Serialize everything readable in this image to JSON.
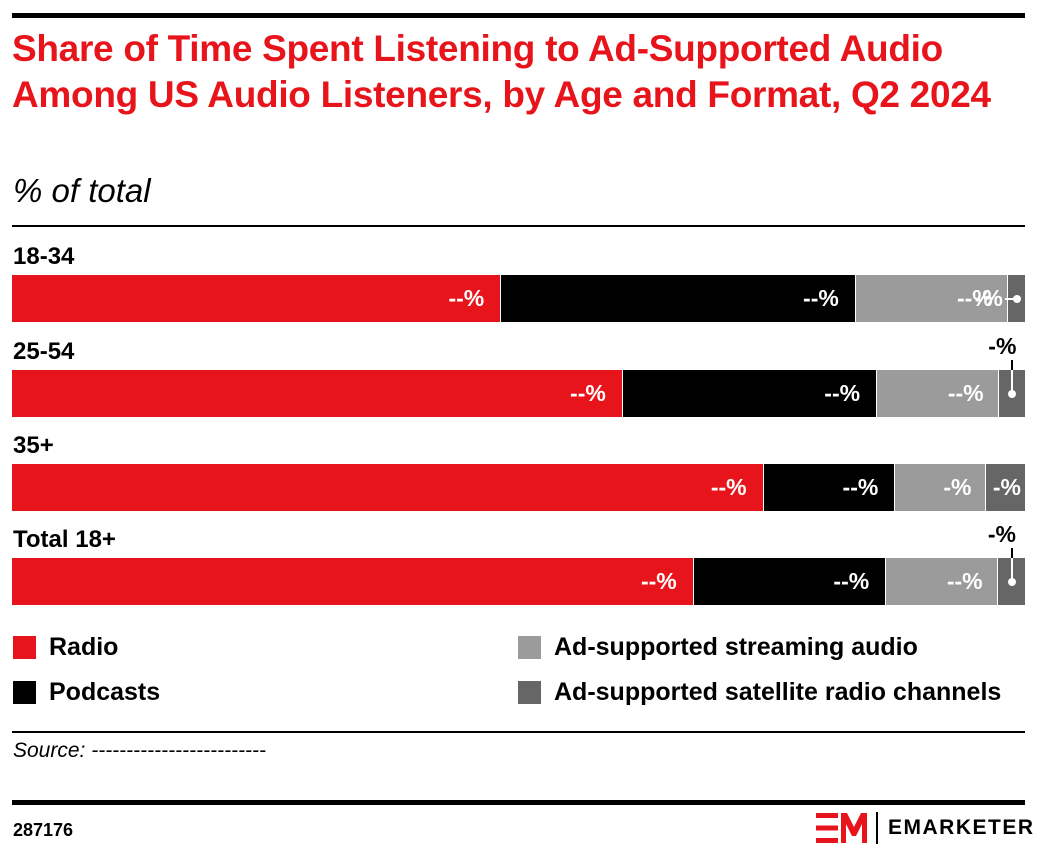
{
  "title": "Share of Time Spent Listening to Ad-Supported Audio Among US Audio Listeners, by Age and Format, Q2 2024",
  "subtitle": "% of total",
  "colors": {
    "radio": "#e8141b",
    "podcasts": "#000000",
    "streaming": "#9b9b9b",
    "satellite": "#666666"
  },
  "chart_data": {
    "type": "bar",
    "orientation": "horizontal",
    "stacked": true,
    "title": "Share of Time Spent Listening to Ad-Supported Audio Among US Audio Listeners, by Age and Format, Q2 2024",
    "subtitle": "% of total",
    "categories": [
      "18-34",
      "25-54",
      "35+",
      "Total 18+"
    ],
    "series": [
      {
        "name": "Radio",
        "values": [
          48.2,
          60.2,
          74.1,
          67.2
        ],
        "labels": [
          "--%",
          "--%",
          "--%",
          "--%"
        ]
      },
      {
        "name": "Podcasts",
        "values": [
          35.0,
          25.1,
          13.0,
          19.0
        ],
        "labels": [
          "--%",
          "--%",
          "--%",
          "--%"
        ]
      },
      {
        "name": "Ad-supported streaming audio",
        "values": [
          15.0,
          12.0,
          9.0,
          11.0
        ],
        "labels": [
          "--%",
          "--%",
          "-%",
          "--%"
        ]
      },
      {
        "name": "Ad-supported satellite radio channels",
        "values": [
          1.8,
          2.7,
          3.9,
          2.8
        ],
        "labels": [
          "-%",
          "-%",
          "-%",
          "-%"
        ]
      }
    ],
    "xlim": [
      0,
      100
    ],
    "legend": "bottom"
  },
  "legend": [
    {
      "label": "Radio"
    },
    {
      "label": "Podcasts"
    },
    {
      "label": "Ad-supported streaming audio"
    },
    {
      "label": "Ad-supported satellite radio channels"
    }
  ],
  "source": "Source: -------------------------",
  "chart_id": "287176",
  "brand": "EMARKETER"
}
